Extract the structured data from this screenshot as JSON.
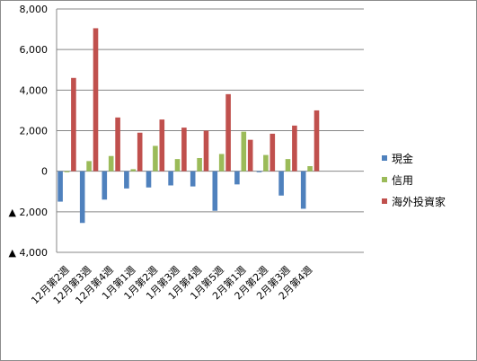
{
  "chart_data": {
    "type": "bar",
    "title": "",
    "xlabel": "",
    "ylabel": "",
    "ylim": [
      -4000,
      8000
    ],
    "yticks": [
      8000,
      6000,
      4000,
      2000,
      0,
      -2000,
      -4000
    ],
    "ytick_labels": [
      "8,000",
      "6,000",
      "4,000",
      "2,000",
      "0",
      "▲ 2,000",
      "▲ 4,000"
    ],
    "grid": true,
    "legend_position": "right",
    "categories": [
      "12月第2週",
      "12月第3週",
      "12月第4週",
      "1月第1週",
      "1月第2週",
      "1月第3週",
      "1月第4週",
      "1月第5週",
      "2月第1週",
      "2月第2週",
      "2月第3週",
      "2月第4週"
    ],
    "series": [
      {
        "name": "現金",
        "color": "#4f81bd",
        "values": [
          -1500,
          -2550,
          -1400,
          -850,
          -800,
          -700,
          -750,
          -1950,
          -650,
          -50,
          -1200,
          -1850
        ]
      },
      {
        "name": "信用",
        "color": "#9bbb59",
        "values": [
          -50,
          500,
          750,
          100,
          1250,
          600,
          650,
          850,
          1950,
          800,
          600,
          250
        ]
      },
      {
        "name": "海外投資家",
        "color": "#c0504d",
        "values": [
          4600,
          7050,
          2650,
          1900,
          2550,
          2150,
          2000,
          3800,
          1550,
          1850,
          2250,
          3000
        ]
      }
    ]
  }
}
